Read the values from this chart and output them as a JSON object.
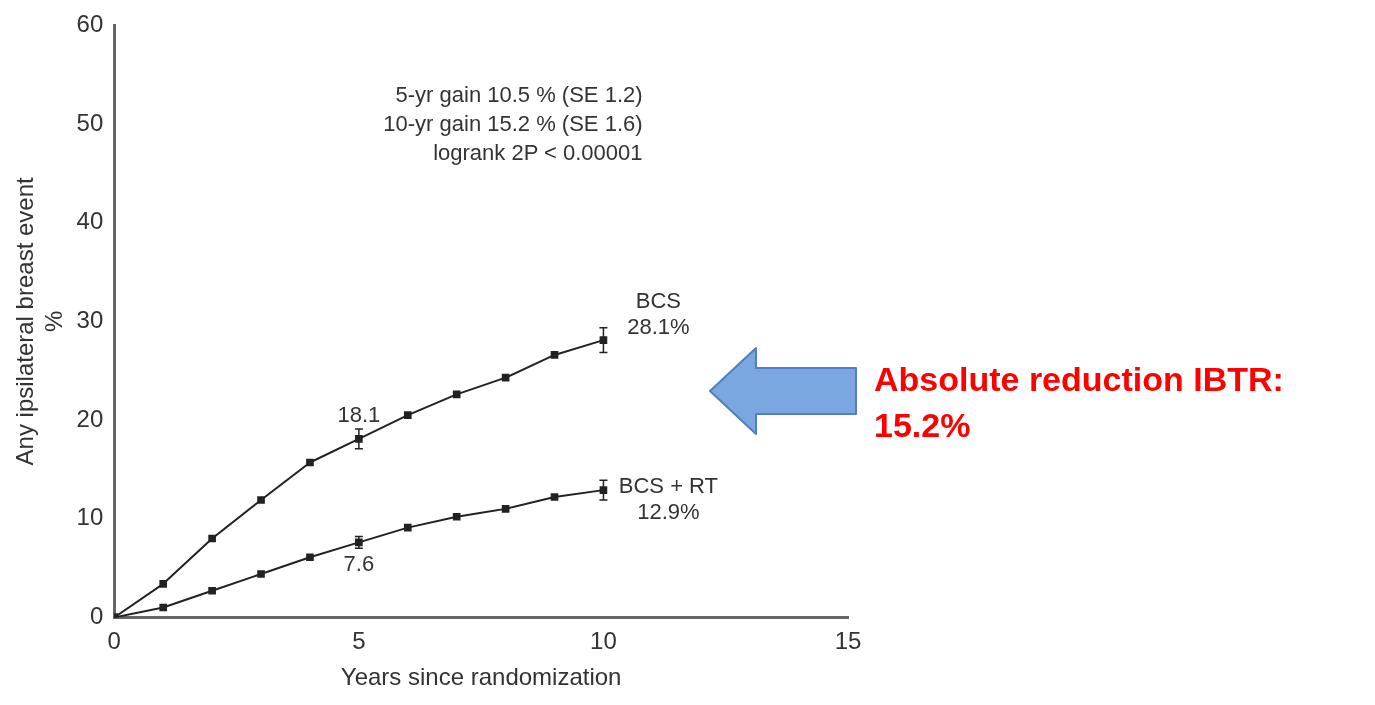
{
  "chart_data": {
    "type": "line",
    "xlabel": "Years since randomization",
    "ylabel": "Any ipsilateral breast event\n%",
    "x": [
      0,
      1,
      2,
      3,
      4,
      5,
      6,
      7,
      8,
      9,
      10
    ],
    "series": [
      {
        "name": "BCS",
        "color": "#222222",
        "values": [
          0,
          3.4,
          8.0,
          11.9,
          15.7,
          18.1,
          20.5,
          22.6,
          24.3,
          26.6,
          28.1
        ],
        "errors": [
          null,
          null,
          null,
          null,
          null,
          1.0,
          null,
          null,
          null,
          null,
          1.25
        ],
        "value_labels": [
          null,
          null,
          null,
          null,
          null,
          "18.1",
          null,
          null,
          null,
          null,
          "28.1%"
        ]
      },
      {
        "name": "BCS + RT",
        "color": "#222222",
        "values": [
          0,
          1.0,
          2.7,
          4.4,
          6.1,
          7.6,
          9.1,
          10.2,
          11.0,
          12.2,
          12.9
        ],
        "errors": [
          null,
          null,
          null,
          null,
          null,
          0.6,
          null,
          null,
          null,
          null,
          1.0
        ],
        "value_labels": [
          null,
          null,
          null,
          null,
          null,
          "7.6",
          null,
          null,
          null,
          null,
          "12.9%"
        ]
      }
    ],
    "xlim": [
      0,
      15
    ],
    "xticks": [
      0,
      5,
      10,
      15
    ],
    "ylim": [
      0,
      60
    ],
    "yticks": [
      0,
      10,
      20,
      30,
      40,
      50,
      60
    ],
    "grid": false,
    "legend": false,
    "marker": "square",
    "line_style": "solid",
    "annotations": [
      "5-yr gain 10.5 % (SE 1.2)\n10-yr gain 15.2 % (SE 1.6)\nlogrank 2P < 0.00001",
      "Absolute reduction IBTR:\n15.2%"
    ]
  }
}
